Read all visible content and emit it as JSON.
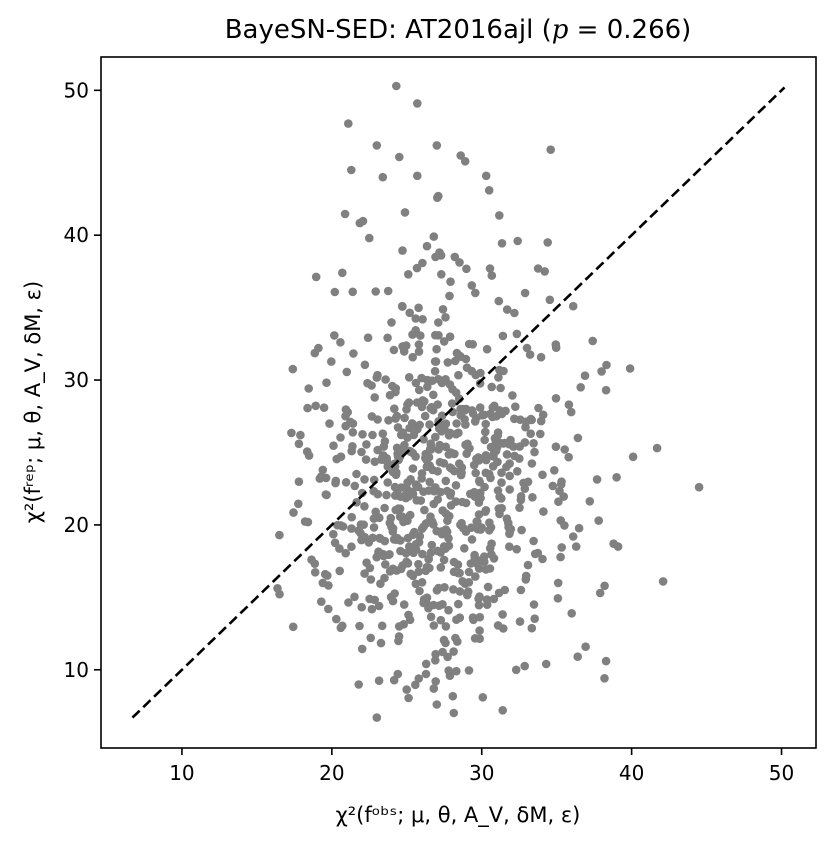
{
  "chart_data": {
    "type": "scatter",
    "title_prefix": "BayeSN-SED: AT2016ajl (",
    "title_p": "p",
    "title_eq": " = 0.266)",
    "xlabel": "χ²(fᵒᵇˢ; μ, θ, A_V, δM, ε)",
    "ylabel": "χ²(fʳᵉᵖ; μ, θ, A_V, δM, ε)",
    "xlim": [
      4.6,
      52.3
    ],
    "ylim": [
      4.6,
      52.3
    ],
    "xticks": [
      10,
      20,
      30,
      40,
      50
    ],
    "yticks": [
      10,
      20,
      30,
      40,
      50
    ],
    "point_color": "#808080",
    "line_color": "#000000",
    "reference_line": {
      "x": [
        6.7,
        50.2
      ],
      "y": [
        6.7,
        50.2
      ],
      "style": "dashed"
    },
    "grid": false,
    "points_generation": {
      "count": 800,
      "x_mean": 27.2,
      "x_sd": 4.3,
      "y_mean": 22.6,
      "y_sd": 6.9
    },
    "points": [
      [
        24.3,
        50.3
      ],
      [
        25.7,
        49.1
      ],
      [
        21.1,
        47.7
      ],
      [
        27.0,
        46.2
      ],
      [
        24.5,
        45.4
      ],
      [
        23.0,
        46.2
      ],
      [
        28.6,
        45.5
      ],
      [
        34.6,
        45.9
      ],
      [
        28.9,
        45.1
      ],
      [
        21.3,
        44.5
      ],
      [
        30.3,
        44.1
      ],
      [
        25.7,
        44.1
      ],
      [
        23.4,
        44.0
      ],
      [
        30.5,
        43.1
      ],
      [
        27.1,
        42.7
      ],
      [
        22.5,
        39.8
      ],
      [
        26.8,
        39.9
      ],
      [
        32.4,
        39.6
      ],
      [
        34.4,
        39.5
      ],
      [
        28.2,
        38.5
      ],
      [
        20.7,
        37.4
      ],
      [
        25.1,
        37.3
      ],
      [
        27.3,
        37.3
      ],
      [
        34.2,
        37.5
      ],
      [
        36.1,
        35.1
      ],
      [
        37.4,
        32.7
      ],
      [
        38.0,
        30.6
      ],
      [
        39.9,
        30.8
      ],
      [
        38.3,
        29.3
      ],
      [
        36.6,
        29.5
      ],
      [
        17.9,
        26.2
      ],
      [
        17.8,
        25.6
      ],
      [
        19.2,
        23.2
      ],
      [
        19.4,
        23.8
      ],
      [
        19.6,
        22.1
      ],
      [
        16.5,
        19.3
      ],
      [
        19.4,
        16.0
      ],
      [
        19.7,
        16.5
      ],
      [
        19.3,
        14.7
      ],
      [
        20.3,
        13.5
      ],
      [
        20.6,
        12.9
      ],
      [
        23.0,
        6.7
      ],
      [
        27.0,
        7.6
      ],
      [
        31.4,
        7.2
      ],
      [
        26.8,
        8.7
      ],
      [
        25.8,
        9.4
      ],
      [
        24.4,
        9.7
      ],
      [
        28.3,
        9.9
      ],
      [
        32.3,
        10.0
      ],
      [
        34.3,
        10.4
      ],
      [
        36.4,
        10.9
      ],
      [
        38.3,
        10.6
      ],
      [
        40.1,
        24.7
      ],
      [
        41.7,
        25.3
      ],
      [
        42.1,
        16.1
      ],
      [
        44.5,
        22.6
      ],
      [
        38.8,
        18.7
      ],
      [
        39.1,
        18.5
      ],
      [
        37.9,
        15.3
      ],
      [
        38.2,
        15.8
      ],
      [
        37.8,
        20.3
      ],
      [
        36.1,
        19.2
      ],
      [
        36.3,
        18.5
      ],
      [
        36.0,
        13.9
      ],
      [
        35.1,
        16.0
      ]
    ]
  }
}
